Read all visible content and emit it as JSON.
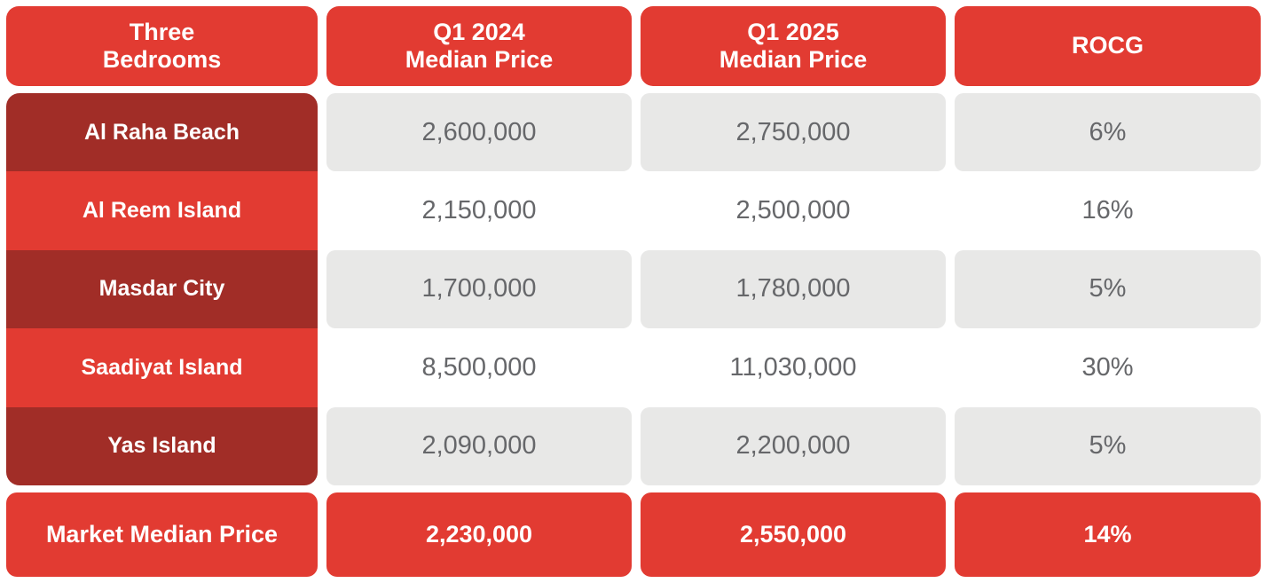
{
  "colors": {
    "bright_red": "#E23B32",
    "dark_red": "#A12D27",
    "cell_gray": "#E8E8E7",
    "number_text_gray": "#66676A",
    "header_text_white": "#FFFFFF"
  },
  "chart_data": {
    "type": "table",
    "headers": [
      {
        "line1": "Three",
        "line2": "Bedrooms"
      },
      {
        "line1": "Q1 2024",
        "line2": "Median Price"
      },
      {
        "line1": "Q1 2025",
        "line2": "Median Price"
      },
      {
        "line1": "ROCG",
        "line2": ""
      }
    ],
    "rows": [
      {
        "area": "Al Raha Beach",
        "q1_2024": "2,600,000",
        "q1_2025": "2,750,000",
        "rocg": "6%"
      },
      {
        "area": "Al Reem Island",
        "q1_2024": "2,150,000",
        "q1_2025": "2,500,000",
        "rocg": "16%"
      },
      {
        "area": "Masdar City",
        "q1_2024": "1,700,000",
        "q1_2025": "1,780,000",
        "rocg": "5%"
      },
      {
        "area": "Saadiyat Island",
        "q1_2024": "8,500,000",
        "q1_2025": "11,030,000",
        "rocg": "30%"
      },
      {
        "area": "Yas Island",
        "q1_2024": "2,090,000",
        "q1_2025": "2,200,000",
        "rocg": "5%"
      }
    ],
    "footer": {
      "label": "Market Median Price",
      "q1_2024": "2,230,000",
      "q1_2025": "2,550,000",
      "rocg": "14%"
    }
  }
}
